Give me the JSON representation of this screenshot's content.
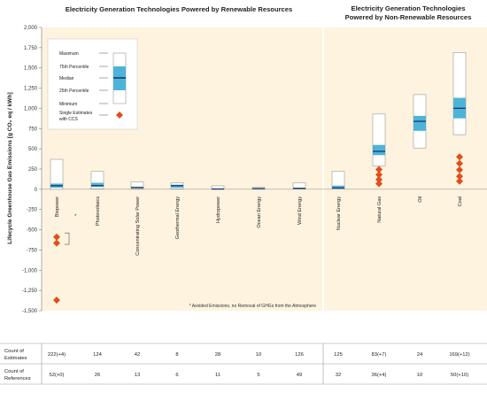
{
  "chart_data": {
    "type": "boxplot",
    "titles": {
      "renewable": "Electricity Generation Technologies Powered by Renewable Resources",
      "nonrenewable_line1": "Electricity Generation Technologies",
      "nonrenewable_line2": "Powered by Non-Renewable Resources"
    },
    "ylabel": "Lifecycle Greenhouse Gas Emissions [g CO₂ eq / kWh]",
    "ylim": [
      -1500,
      2000
    ],
    "yticks": [
      "2,000",
      "1,750",
      "1,500",
      "1,250",
      "1,000",
      "750",
      "500",
      "250",
      "0",
      "-250",
      "-500",
      "-750",
      "-1,000",
      "-1,250",
      "-1,500"
    ],
    "ytick_values": [
      2000,
      1750,
      1500,
      1250,
      1000,
      750,
      500,
      250,
      0,
      -250,
      -500,
      -750,
      -1000,
      -1250,
      -1500
    ],
    "categories": [
      {
        "name": "Biopower",
        "group": "renewable",
        "min": 0,
        "q1": 20,
        "median": 45,
        "q3": 70,
        "max": 370,
        "ccs": [
          -590,
          -665,
          -1370
        ]
      },
      {
        "name": "Photovoltaics",
        "group": "renewable",
        "min": 5,
        "q1": 30,
        "median": 45,
        "q3": 80,
        "max": 220,
        "ccs": []
      },
      {
        "name": "Concentrating Solar Power",
        "group": "renewable",
        "min": 7,
        "q1": 14,
        "median": 22,
        "q3": 32,
        "max": 90,
        "ccs": []
      },
      {
        "name": "Geothermal Energy",
        "group": "renewable",
        "min": 6,
        "q1": 20,
        "median": 45,
        "q3": 57,
        "max": 80,
        "ccs": []
      },
      {
        "name": "Hydropower",
        "group": "renewable",
        "min": 0,
        "q1": 3,
        "median": 4,
        "q3": 7,
        "max": 43,
        "ccs": []
      },
      {
        "name": "Ocean Energy",
        "group": "renewable",
        "min": 2,
        "q1": 6,
        "median": 8,
        "q3": 9,
        "max": 23,
        "ccs": []
      },
      {
        "name": "Wind Energy",
        "group": "renewable",
        "min": 2,
        "q1": 8,
        "median": 12,
        "q3": 20,
        "max": 81,
        "ccs": []
      },
      {
        "name": "Nuclear Energy",
        "group": "nonrenewable",
        "min": 1,
        "q1": 8,
        "median": 16,
        "q3": 45,
        "max": 220,
        "ccs": []
      },
      {
        "name": "Natural Gas",
        "group": "nonrenewable",
        "min": 290,
        "q1": 422,
        "median": 469,
        "q3": 548,
        "max": 930,
        "ccs": [
          245,
          180,
          120,
          70
        ]
      },
      {
        "name": "Oil",
        "group": "nonrenewable",
        "min": 510,
        "q1": 722,
        "median": 840,
        "q3": 907,
        "max": 1170,
        "ccs": []
      },
      {
        "name": "Coal",
        "group": "nonrenewable",
        "min": 675,
        "q1": 877,
        "median": 1001,
        "q3": 1130,
        "max": 1689,
        "ccs": [
          400,
          320,
          240,
          160,
          100
        ]
      }
    ],
    "legend": {
      "maximum": "Maximum",
      "p75": "75th Percentile",
      "median": "Median",
      "p25": "25th Percentile",
      "minimum": "Minimum",
      "ccs_line1": "Single Estimates",
      "ccs_line2": "with CCS"
    },
    "annotation_marker": "*",
    "footnote": "*  Avoided Emissions, no Removal of GHGs from the Atmosphere",
    "table": {
      "row_labels": [
        [
          "Count of",
          "Estimates"
        ],
        [
          "Count of",
          "References"
        ]
      ],
      "estimates": [
        "222(+4)",
        "124",
        "42",
        "8",
        "28",
        "10",
        "126",
        "125",
        "83(+7)",
        "24",
        "169(+12)"
      ],
      "references": [
        "52(+0)",
        "26",
        "13",
        "6",
        "11",
        "5",
        "49",
        "32",
        "36(+4)",
        "10",
        "50(+10)"
      ]
    },
    "colors": {
      "background": "#fdf3de",
      "iqr": "#4db3d9",
      "median": "#1a3a6b",
      "ccs": "#e04e1b",
      "divider": "#d9a93f"
    }
  }
}
